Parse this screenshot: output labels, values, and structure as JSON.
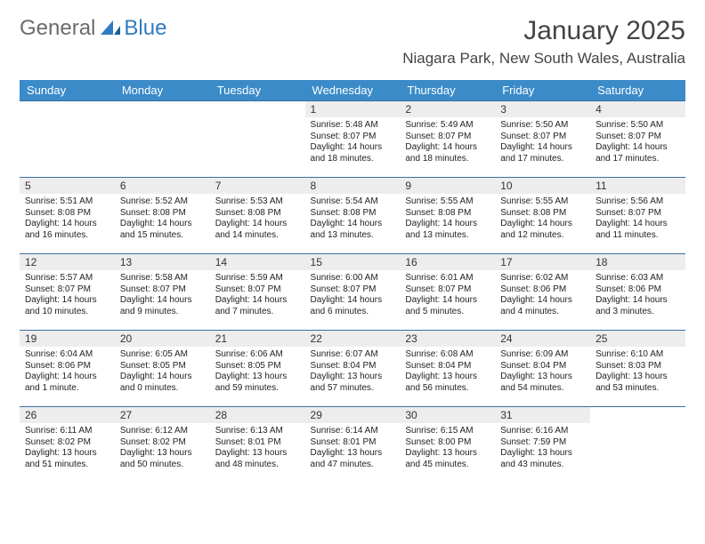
{
  "logo": {
    "text1": "General",
    "text2": "Blue"
  },
  "title": "January 2025",
  "location": "Niagara Park, New South Wales, Australia",
  "colors": {
    "header_bg": "#3b8bc9",
    "header_text": "#ffffff",
    "row_divider": "#3b6fa0",
    "daynum_bg": "#ededed",
    "logo_gray": "#6b6b6b",
    "logo_blue": "#2f7bbf",
    "body_text": "#222222",
    "background": "#ffffff"
  },
  "typography": {
    "title_fontsize": 30,
    "location_fontsize": 17,
    "header_fontsize": 13,
    "daynum_fontsize": 12,
    "cell_fontsize": 10
  },
  "columns": [
    "Sunday",
    "Monday",
    "Tuesday",
    "Wednesday",
    "Thursday",
    "Friday",
    "Saturday"
  ],
  "weeks": [
    [
      {
        "day": "",
        "sunrise": "",
        "sunset": "",
        "daylight": ""
      },
      {
        "day": "",
        "sunrise": "",
        "sunset": "",
        "daylight": ""
      },
      {
        "day": "",
        "sunrise": "",
        "sunset": "",
        "daylight": ""
      },
      {
        "day": "1",
        "sunrise": "Sunrise: 5:48 AM",
        "sunset": "Sunset: 8:07 PM",
        "daylight": "Daylight: 14 hours and 18 minutes."
      },
      {
        "day": "2",
        "sunrise": "Sunrise: 5:49 AM",
        "sunset": "Sunset: 8:07 PM",
        "daylight": "Daylight: 14 hours and 18 minutes."
      },
      {
        "day": "3",
        "sunrise": "Sunrise: 5:50 AM",
        "sunset": "Sunset: 8:07 PM",
        "daylight": "Daylight: 14 hours and 17 minutes."
      },
      {
        "day": "4",
        "sunrise": "Sunrise: 5:50 AM",
        "sunset": "Sunset: 8:07 PM",
        "daylight": "Daylight: 14 hours and 17 minutes."
      }
    ],
    [
      {
        "day": "5",
        "sunrise": "Sunrise: 5:51 AM",
        "sunset": "Sunset: 8:08 PM",
        "daylight": "Daylight: 14 hours and 16 minutes."
      },
      {
        "day": "6",
        "sunrise": "Sunrise: 5:52 AM",
        "sunset": "Sunset: 8:08 PM",
        "daylight": "Daylight: 14 hours and 15 minutes."
      },
      {
        "day": "7",
        "sunrise": "Sunrise: 5:53 AM",
        "sunset": "Sunset: 8:08 PM",
        "daylight": "Daylight: 14 hours and 14 minutes."
      },
      {
        "day": "8",
        "sunrise": "Sunrise: 5:54 AM",
        "sunset": "Sunset: 8:08 PM",
        "daylight": "Daylight: 14 hours and 13 minutes."
      },
      {
        "day": "9",
        "sunrise": "Sunrise: 5:55 AM",
        "sunset": "Sunset: 8:08 PM",
        "daylight": "Daylight: 14 hours and 13 minutes."
      },
      {
        "day": "10",
        "sunrise": "Sunrise: 5:55 AM",
        "sunset": "Sunset: 8:08 PM",
        "daylight": "Daylight: 14 hours and 12 minutes."
      },
      {
        "day": "11",
        "sunrise": "Sunrise: 5:56 AM",
        "sunset": "Sunset: 8:07 PM",
        "daylight": "Daylight: 14 hours and 11 minutes."
      }
    ],
    [
      {
        "day": "12",
        "sunrise": "Sunrise: 5:57 AM",
        "sunset": "Sunset: 8:07 PM",
        "daylight": "Daylight: 14 hours and 10 minutes."
      },
      {
        "day": "13",
        "sunrise": "Sunrise: 5:58 AM",
        "sunset": "Sunset: 8:07 PM",
        "daylight": "Daylight: 14 hours and 9 minutes."
      },
      {
        "day": "14",
        "sunrise": "Sunrise: 5:59 AM",
        "sunset": "Sunset: 8:07 PM",
        "daylight": "Daylight: 14 hours and 7 minutes."
      },
      {
        "day": "15",
        "sunrise": "Sunrise: 6:00 AM",
        "sunset": "Sunset: 8:07 PM",
        "daylight": "Daylight: 14 hours and 6 minutes."
      },
      {
        "day": "16",
        "sunrise": "Sunrise: 6:01 AM",
        "sunset": "Sunset: 8:07 PM",
        "daylight": "Daylight: 14 hours and 5 minutes."
      },
      {
        "day": "17",
        "sunrise": "Sunrise: 6:02 AM",
        "sunset": "Sunset: 8:06 PM",
        "daylight": "Daylight: 14 hours and 4 minutes."
      },
      {
        "day": "18",
        "sunrise": "Sunrise: 6:03 AM",
        "sunset": "Sunset: 8:06 PM",
        "daylight": "Daylight: 14 hours and 3 minutes."
      }
    ],
    [
      {
        "day": "19",
        "sunrise": "Sunrise: 6:04 AM",
        "sunset": "Sunset: 8:06 PM",
        "daylight": "Daylight: 14 hours and 1 minute."
      },
      {
        "day": "20",
        "sunrise": "Sunrise: 6:05 AM",
        "sunset": "Sunset: 8:05 PM",
        "daylight": "Daylight: 14 hours and 0 minutes."
      },
      {
        "day": "21",
        "sunrise": "Sunrise: 6:06 AM",
        "sunset": "Sunset: 8:05 PM",
        "daylight": "Daylight: 13 hours and 59 minutes."
      },
      {
        "day": "22",
        "sunrise": "Sunrise: 6:07 AM",
        "sunset": "Sunset: 8:04 PM",
        "daylight": "Daylight: 13 hours and 57 minutes."
      },
      {
        "day": "23",
        "sunrise": "Sunrise: 6:08 AM",
        "sunset": "Sunset: 8:04 PM",
        "daylight": "Daylight: 13 hours and 56 minutes."
      },
      {
        "day": "24",
        "sunrise": "Sunrise: 6:09 AM",
        "sunset": "Sunset: 8:04 PM",
        "daylight": "Daylight: 13 hours and 54 minutes."
      },
      {
        "day": "25",
        "sunrise": "Sunrise: 6:10 AM",
        "sunset": "Sunset: 8:03 PM",
        "daylight": "Daylight: 13 hours and 53 minutes."
      }
    ],
    [
      {
        "day": "26",
        "sunrise": "Sunrise: 6:11 AM",
        "sunset": "Sunset: 8:02 PM",
        "daylight": "Daylight: 13 hours and 51 minutes."
      },
      {
        "day": "27",
        "sunrise": "Sunrise: 6:12 AM",
        "sunset": "Sunset: 8:02 PM",
        "daylight": "Daylight: 13 hours and 50 minutes."
      },
      {
        "day": "28",
        "sunrise": "Sunrise: 6:13 AM",
        "sunset": "Sunset: 8:01 PM",
        "daylight": "Daylight: 13 hours and 48 minutes."
      },
      {
        "day": "29",
        "sunrise": "Sunrise: 6:14 AM",
        "sunset": "Sunset: 8:01 PM",
        "daylight": "Daylight: 13 hours and 47 minutes."
      },
      {
        "day": "30",
        "sunrise": "Sunrise: 6:15 AM",
        "sunset": "Sunset: 8:00 PM",
        "daylight": "Daylight: 13 hours and 45 minutes."
      },
      {
        "day": "31",
        "sunrise": "Sunrise: 6:16 AM",
        "sunset": "Sunset: 7:59 PM",
        "daylight": "Daylight: 13 hours and 43 minutes."
      },
      {
        "day": "",
        "sunrise": "",
        "sunset": "",
        "daylight": ""
      }
    ]
  ]
}
